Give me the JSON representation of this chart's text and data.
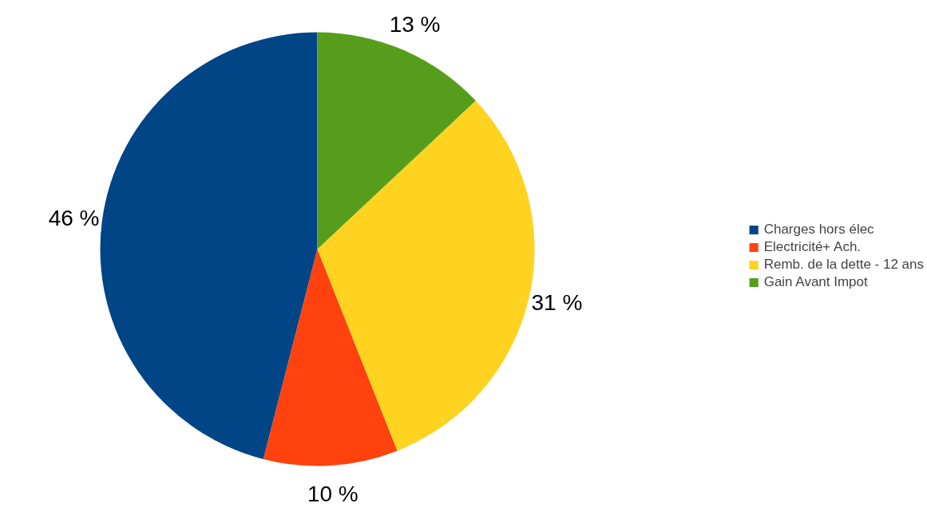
{
  "chart_data": {
    "type": "pie",
    "categories": [
      "Charges hors élec",
      "Electricité+ Ach.",
      "Remb. de la dette - 12 ans",
      "Gain Avant Impot"
    ],
    "values": [
      46,
      10,
      31,
      13
    ],
    "colors": [
      "#004586",
      "#ff420e",
      "#ffd320",
      "#579d1c"
    ],
    "value_labels": [
      "46 %",
      "10 %",
      "31 %",
      "13 %"
    ],
    "legend": "right"
  }
}
